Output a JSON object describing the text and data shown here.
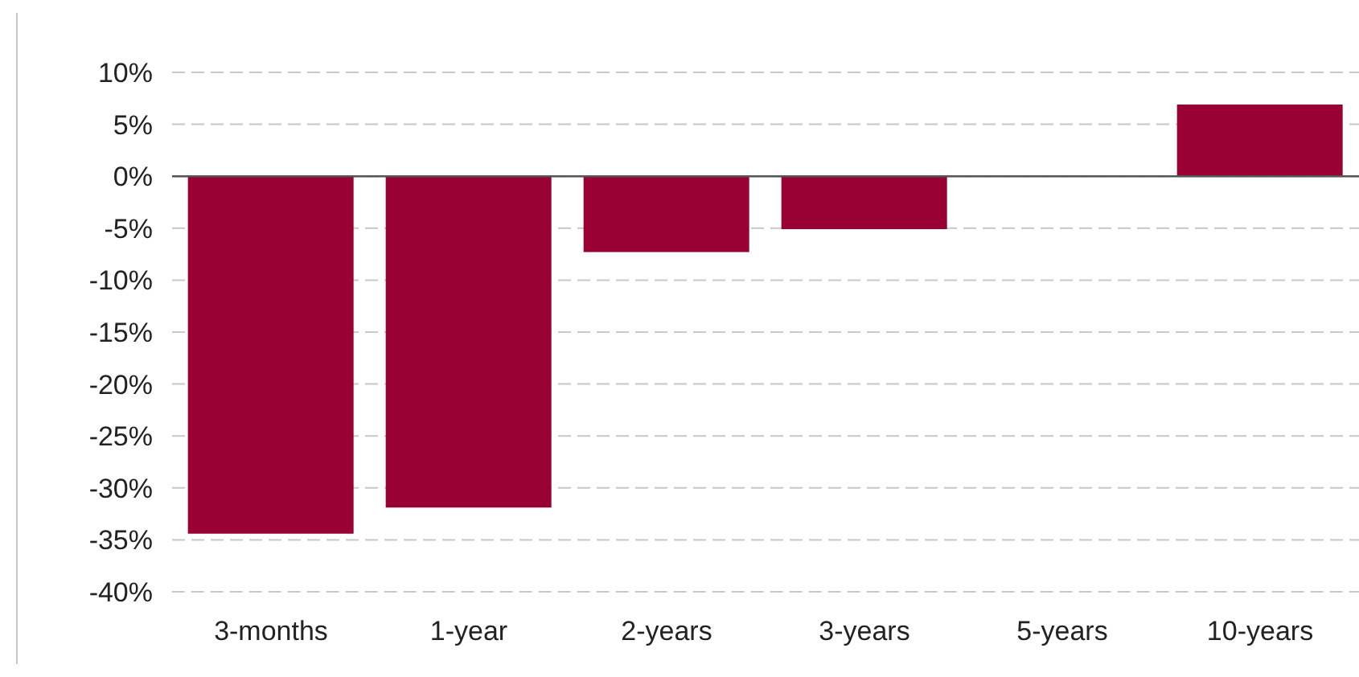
{
  "chart_data": {
    "type": "bar",
    "categories": [
      "3-months",
      "1-year",
      "2-years",
      "3-years",
      "5-years",
      "10-years"
    ],
    "values": [
      -34.4,
      -31.9,
      -7.3,
      -5.1,
      0,
      6.9
    ],
    "color": "#990033",
    "ylim": [
      -40,
      10
    ],
    "yticks": [
      {
        "value": -40,
        "label": "-40%"
      },
      {
        "value": -35,
        "label": "-35%"
      },
      {
        "value": -30,
        "label": "-30%"
      },
      {
        "value": -25,
        "label": "-25%"
      },
      {
        "value": -20,
        "label": "-20%"
      },
      {
        "value": -15,
        "label": "-15%"
      },
      {
        "value": -10,
        "label": "-10%"
      },
      {
        "value": -5,
        "label": "-5%"
      },
      {
        "value": 0,
        "label": "0%"
      },
      {
        "value": 5,
        "label": "5%"
      },
      {
        "value": 10,
        "label": "10%"
      }
    ],
    "grid": "y",
    "legend": false
  }
}
